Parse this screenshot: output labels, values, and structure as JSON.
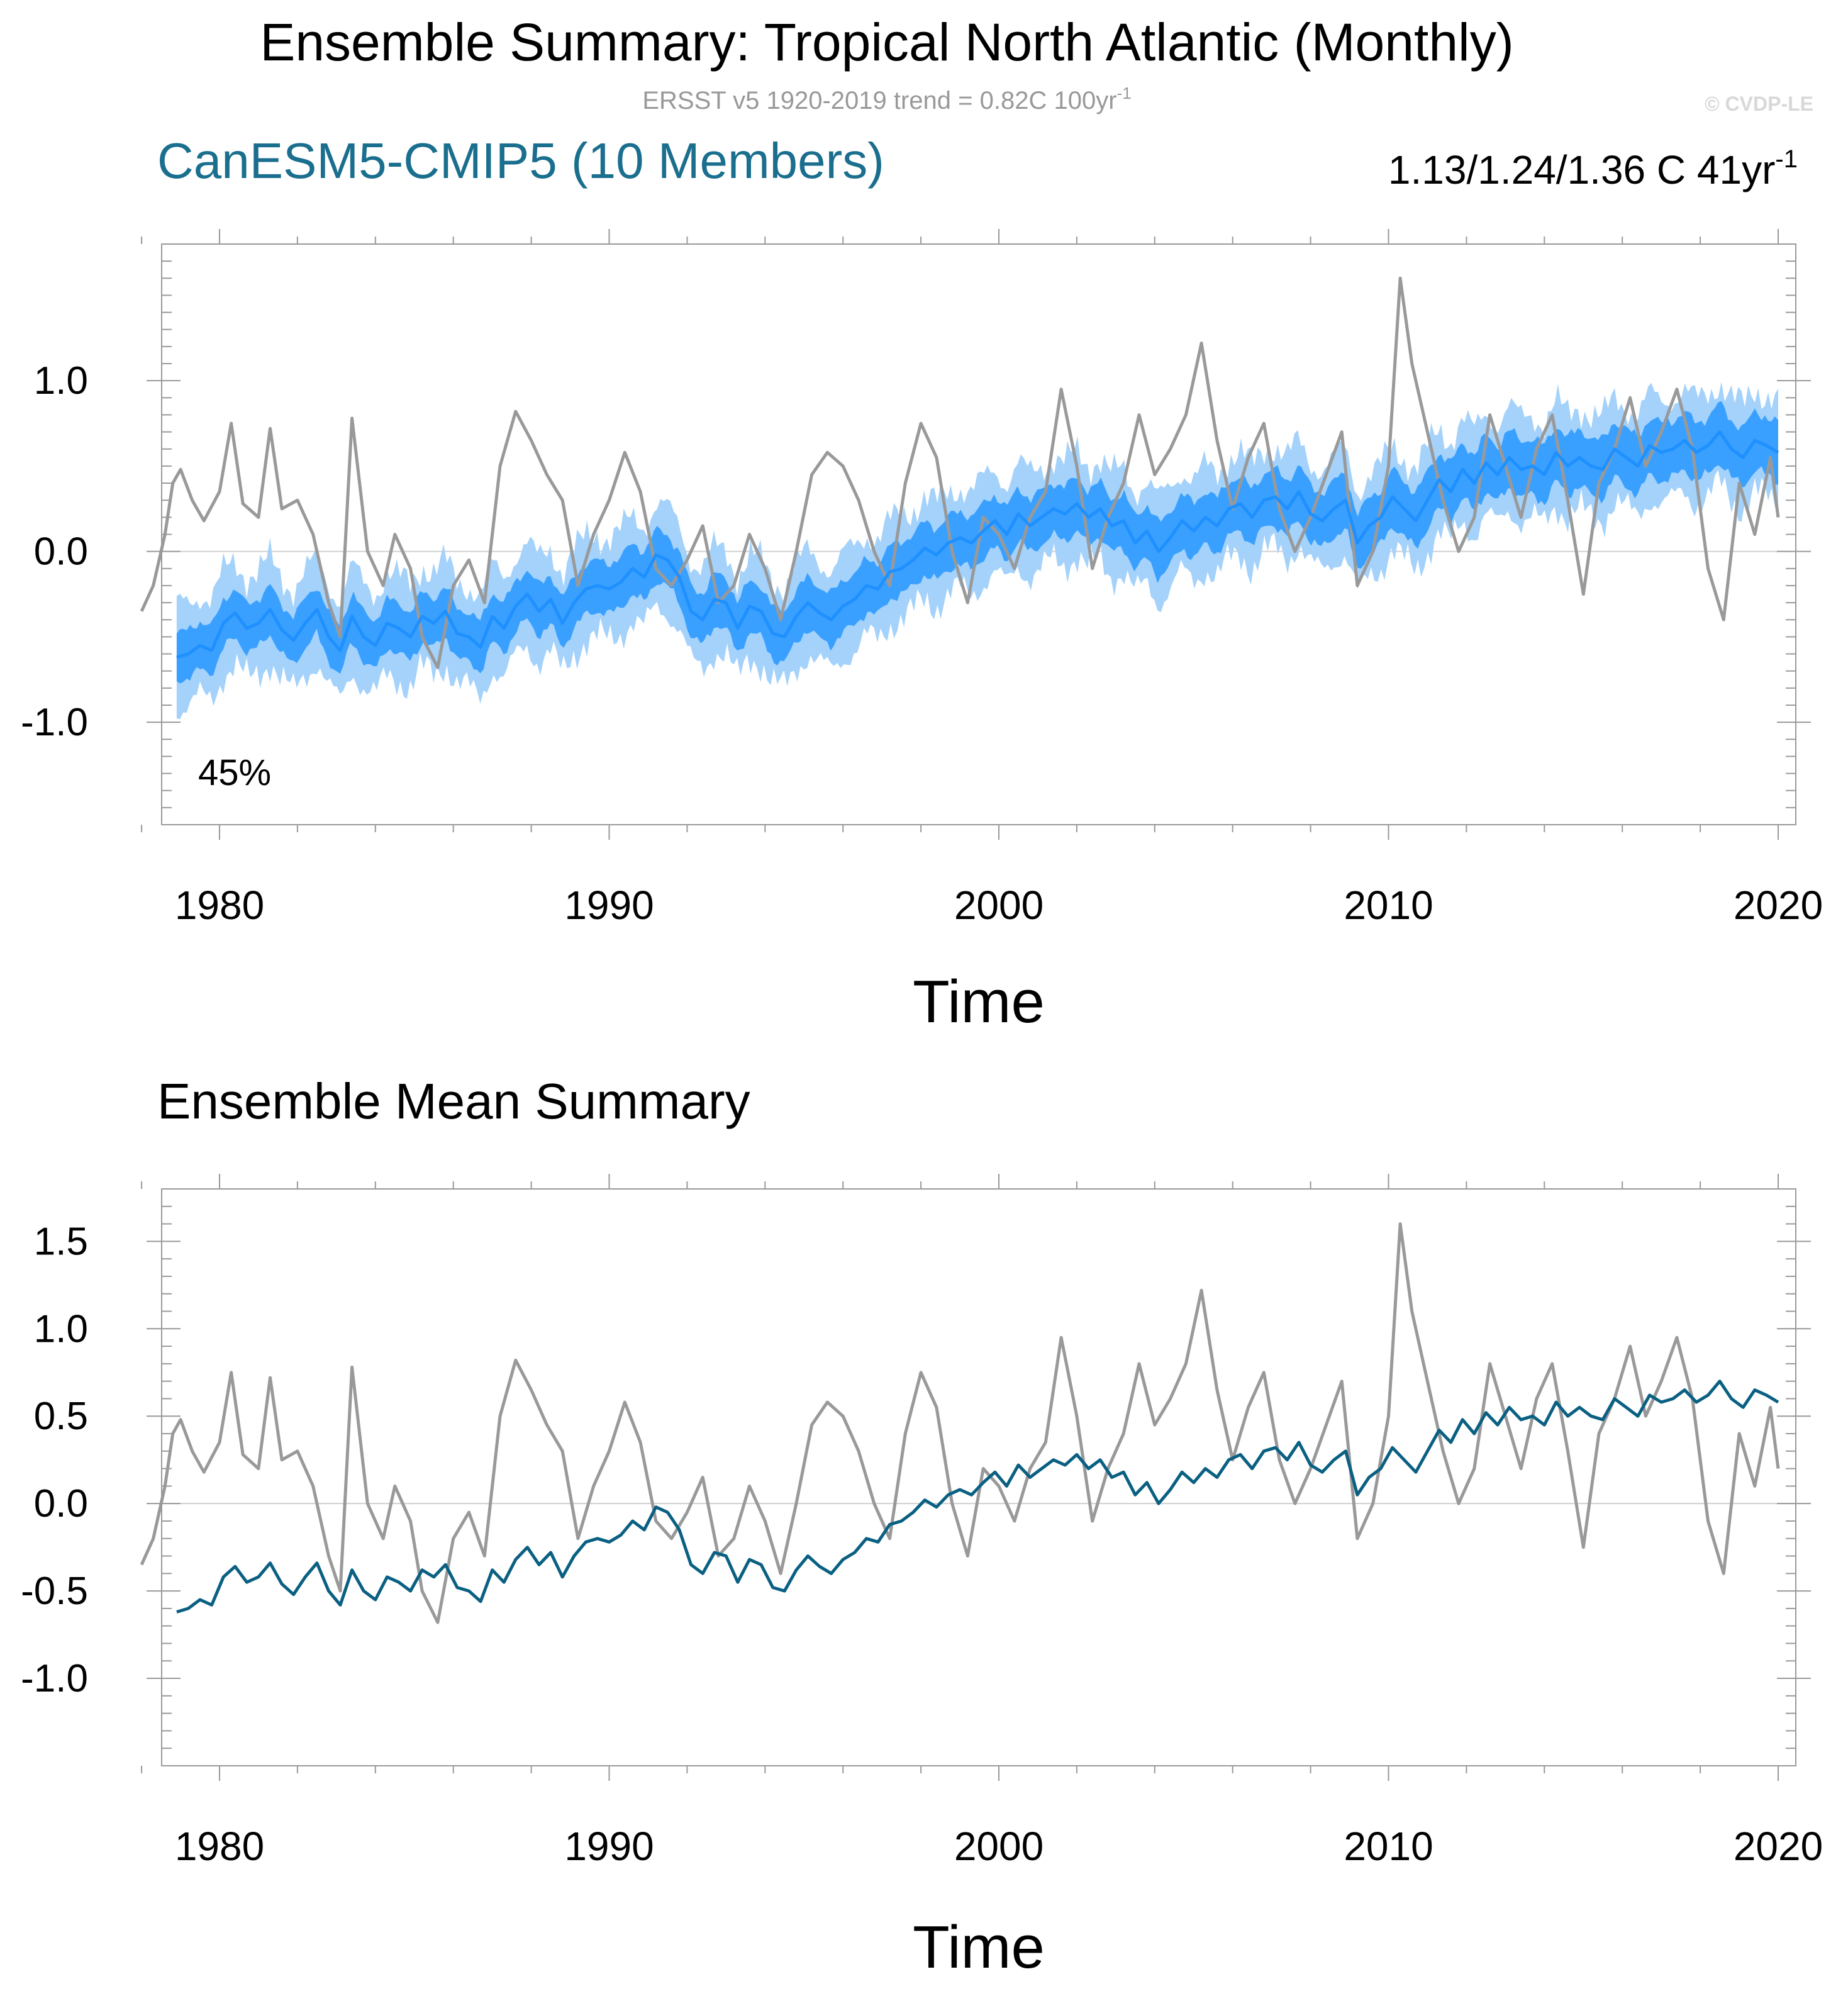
{
  "main_title": "Ensemble Summary: Tropical North Atlantic (Monthly)",
  "obs_trend": {
    "text": "ERSST v5 1920-2019 trend = 0.82C 100yr",
    "sup": "-1"
  },
  "copyright": "© CVDP-LE",
  "model_title": "CanESM5-CMIP5 (10 Members)",
  "model_trend": {
    "text": "1.13/1.24/1.36 C 41yr",
    "sup": "-1"
  },
  "percent_label": "45%",
  "lower_title": "Ensemble Mean Summary",
  "colors": {
    "observations": "#999999",
    "ensemble_mean_upper": "#1e90ff",
    "spread_inner": "#3aa0ff",
    "spread_outer": "#a4d2fb",
    "ensemble_mean_lower": "#0a6082",
    "model_title": "#1a6e8e",
    "subtitle": "#999999",
    "copyright": "#d8d8d8"
  },
  "chart_data": [
    {
      "type": "area",
      "title": "CanESM5-CMIP5 (10 Members)",
      "xlabel": "Time",
      "ylabel": "",
      "xlim": [
        1978.0,
        2020.0
      ],
      "ylim": [
        -1.6,
        1.8
      ],
      "xticks": [
        1980,
        1990,
        2000,
        2010,
        2020
      ],
      "xtick_labels": [
        "1980",
        "1990",
        "2000",
        "2010",
        "2020"
      ],
      "yticks": [
        -1.0,
        0.0,
        1.0
      ],
      "ytick_labels": [
        "-1.0",
        "0.0",
        "1.0"
      ],
      "zero_line": 0.0,
      "series": [
        {
          "name": "ERSST v5 observations",
          "role": "obs"
        },
        {
          "name": "Ensemble mean",
          "role": "mean"
        },
        {
          "name": "25th-75th percentile spread",
          "role": "inner_band",
          "half_width_start": 0.14,
          "half_width_end": 0.17
        },
        {
          "name": "min-max spread",
          "role": "outer_band",
          "half_width_start": 0.3,
          "half_width_end": 0.3
        }
      ]
    },
    {
      "type": "line",
      "title": "Ensemble Mean Summary",
      "xlabel": "Time",
      "ylabel": "",
      "xlim": [
        1978.0,
        2020.0
      ],
      "ylim": [
        -1.5,
        1.8
      ],
      "xticks": [
        1980,
        1990,
        2000,
        2010,
        2020
      ],
      "xtick_labels": [
        "1980",
        "1990",
        "2000",
        "2010",
        "2020"
      ],
      "yticks": [
        -1.0,
        -0.5,
        0.0,
        0.5,
        1.0,
        1.5
      ],
      "ytick_labels": [
        "-1.0",
        "-0.5",
        "0.0",
        "0.5",
        "1.0",
        "1.5"
      ],
      "zero_line": 0.0,
      "series": [
        {
          "name": "ERSST v5 observations",
          "role": "obs"
        },
        {
          "name": "Ensemble mean",
          "role": "mean"
        }
      ]
    }
  ],
  "series_values": {
    "obs": {
      "x": [
        1978.0,
        1978.3,
        1978.6,
        1978.8,
        1979.0,
        1979.3,
        1979.6,
        1980.0,
        1980.3,
        1980.6,
        1981.0,
        1981.3,
        1981.6,
        1982.0,
        1982.4,
        1982.8,
        1983.1,
        1983.4,
        1983.8,
        1984.2,
        1984.5,
        1984.9,
        1985.2,
        1985.6,
        1986.0,
        1986.4,
        1986.8,
        1987.2,
        1987.6,
        1988.0,
        1988.4,
        1988.8,
        1989.2,
        1989.6,
        1990.0,
        1990.4,
        1990.8,
        1991.2,
        1991.6,
        1992.0,
        1992.4,
        1992.8,
        1993.2,
        1993.6,
        1994.0,
        1994.4,
        1994.8,
        1995.2,
        1995.6,
        1996.0,
        1996.4,
        1996.8,
        1997.2,
        1997.6,
        1998.0,
        1998.4,
        1998.8,
        1999.2,
        1999.6,
        2000.0,
        2000.4,
        2000.8,
        2001.2,
        2001.6,
        2002.0,
        2002.4,
        2002.8,
        2003.2,
        2003.6,
        2004.0,
        2004.4,
        2004.8,
        2005.2,
        2005.6,
        2006.0,
        2006.4,
        2006.8,
        2007.2,
        2007.6,
        2008.0,
        2008.4,
        2008.8,
        2009.2,
        2009.6,
        2010.0,
        2010.3,
        2010.6,
        2011.0,
        2011.4,
        2011.8,
        2012.2,
        2012.6,
        2013.0,
        2013.4,
        2013.8,
        2014.2,
        2014.6,
        2015.0,
        2015.4,
        2015.8,
        2016.2,
        2016.6,
        2017.0,
        2017.4,
        2017.8,
        2018.2,
        2018.6,
        2019.0,
        2019.4,
        2019.8,
        2020.0
      ],
      "y": [
        -0.35,
        -0.2,
        0.1,
        0.4,
        0.48,
        0.3,
        0.18,
        0.35,
        0.75,
        0.28,
        0.2,
        0.72,
        0.25,
        0.3,
        0.1,
        -0.3,
        -0.5,
        0.78,
        0.0,
        -0.2,
        0.1,
        -0.1,
        -0.5,
        -0.68,
        -0.2,
        -0.05,
        -0.3,
        0.5,
        0.82,
        0.65,
        0.45,
        0.3,
        -0.2,
        0.1,
        0.3,
        0.58,
        0.35,
        -0.1,
        -0.2,
        -0.05,
        0.15,
        -0.3,
        -0.2,
        0.1,
        -0.1,
        -0.4,
        0.0,
        0.45,
        0.58,
        0.5,
        0.3,
        0.0,
        -0.2,
        0.4,
        0.75,
        0.55,
        0.0,
        -0.3,
        0.2,
        0.1,
        -0.1,
        0.2,
        0.35,
        0.95,
        0.5,
        -0.1,
        0.2,
        0.4,
        0.8,
        0.45,
        0.6,
        0.8,
        1.22,
        0.65,
        0.25,
        0.55,
        0.75,
        0.25,
        0.0,
        0.2,
        0.45,
        0.7,
        -0.2,
        0.0,
        0.5,
        1.6,
        1.1,
        0.7,
        0.3,
        0.0,
        0.2,
        0.8,
        0.5,
        0.2,
        0.6,
        0.8,
        0.3,
        -0.25,
        0.4,
        0.6,
        0.9,
        0.5,
        0.7,
        0.95,
        0.6,
        -0.1,
        -0.4,
        0.4,
        0.1,
        0.55,
        0.2
      ]
    },
    "mean": {
      "x": [
        1978.9,
        1979.2,
        1979.5,
        1979.8,
        1980.1,
        1980.4,
        1980.7,
        1981.0,
        1981.3,
        1981.6,
        1981.9,
        1982.2,
        1982.5,
        1982.8,
        1983.1,
        1983.4,
        1983.7,
        1984.0,
        1984.3,
        1984.6,
        1984.9,
        1985.2,
        1985.5,
        1985.8,
        1986.1,
        1986.4,
        1986.7,
        1987.0,
        1987.3,
        1987.6,
        1987.9,
        1988.2,
        1988.5,
        1988.8,
        1989.1,
        1989.4,
        1989.7,
        1990.0,
        1990.3,
        1990.6,
        1990.9,
        1991.2,
        1991.5,
        1991.8,
        1992.1,
        1992.4,
        1992.7,
        1993.0,
        1993.3,
        1993.6,
        1993.9,
        1994.2,
        1994.5,
        1994.8,
        1995.1,
        1995.4,
        1995.7,
        1996.0,
        1996.3,
        1996.6,
        1996.9,
        1997.2,
        1997.5,
        1997.8,
        1998.1,
        1998.4,
        1998.7,
        1999.0,
        1999.3,
        1999.6,
        1999.9,
        2000.2,
        2000.5,
        2000.8,
        2001.1,
        2001.4,
        2001.7,
        2002.0,
        2002.3,
        2002.6,
        2002.9,
        2003.2,
        2003.5,
        2003.8,
        2004.1,
        2004.4,
        2004.7,
        2005.0,
        2005.3,
        2005.6,
        2005.9,
        2006.2,
        2006.5,
        2006.8,
        2007.1,
        2007.4,
        2007.7,
        2008.0,
        2008.3,
        2008.6,
        2008.9,
        2009.2,
        2009.5,
        2009.8,
        2010.1,
        2010.4,
        2010.7,
        2011.0,
        2011.3,
        2011.6,
        2011.9,
        2012.2,
        2012.5,
        2012.8,
        2013.1,
        2013.4,
        2013.7,
        2014.0,
        2014.3,
        2014.6,
        2014.9,
        2015.2,
        2015.5,
        2015.8,
        2016.1,
        2016.4,
        2016.7,
        2017.0,
        2017.3,
        2017.6,
        2017.9,
        2018.2,
        2018.5,
        2018.8,
        2019.1,
        2019.4,
        2019.7,
        2020.0
      ],
      "y": [
        -0.62,
        -0.6,
        -0.55,
        -0.58,
        -0.42,
        -0.36,
        -0.45,
        -0.42,
        -0.34,
        -0.46,
        -0.52,
        -0.42,
        -0.34,
        -0.5,
        -0.58,
        -0.38,
        -0.5,
        -0.55,
        -0.42,
        -0.45,
        -0.5,
        -0.38,
        -0.42,
        -0.35,
        -0.48,
        -0.5,
        -0.56,
        -0.38,
        -0.45,
        -0.32,
        -0.25,
        -0.35,
        -0.28,
        -0.42,
        -0.3,
        -0.22,
        -0.2,
        -0.22,
        -0.18,
        -0.1,
        -0.15,
        -0.02,
        -0.05,
        -0.15,
        -0.35,
        -0.4,
        -0.28,
        -0.3,
        -0.45,
        -0.32,
        -0.35,
        -0.48,
        -0.5,
        -0.38,
        -0.3,
        -0.36,
        -0.4,
        -0.32,
        -0.28,
        -0.2,
        -0.22,
        -0.12,
        -0.1,
        -0.05,
        0.02,
        -0.02,
        0.05,
        0.08,
        0.05,
        0.12,
        0.18,
        0.1,
        0.22,
        0.15,
        0.2,
        0.25,
        0.22,
        0.28,
        0.2,
        0.25,
        0.15,
        0.18,
        0.05,
        0.12,
        0.0,
        0.08,
        0.18,
        0.12,
        0.2,
        0.15,
        0.25,
        0.28,
        0.2,
        0.3,
        0.32,
        0.25,
        0.35,
        0.22,
        0.18,
        0.25,
        0.3,
        0.05,
        0.15,
        0.2,
        0.32,
        0.25,
        0.18,
        0.3,
        0.42,
        0.35,
        0.48,
        0.4,
        0.52,
        0.45,
        0.55,
        0.48,
        0.5,
        0.45,
        0.58,
        0.5,
        0.55,
        0.5,
        0.48,
        0.6,
        0.55,
        0.5,
        0.62,
        0.58,
        0.6,
        0.65,
        0.58,
        0.62,
        0.7,
        0.6,
        0.55,
        0.65,
        0.62,
        0.58
      ]
    }
  }
}
